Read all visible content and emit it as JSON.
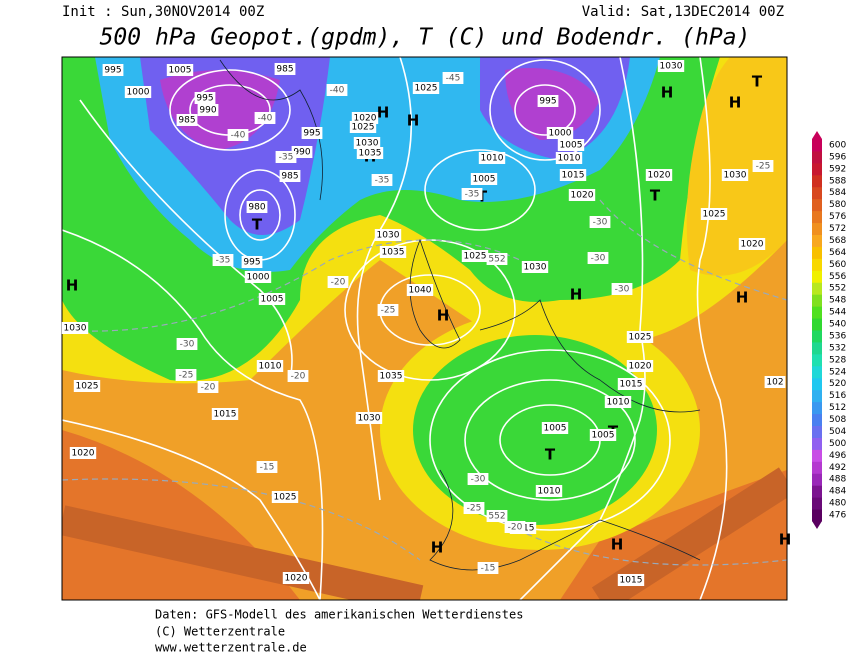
{
  "header": {
    "init": "Init : Sun,30NOV2014 00Z",
    "valid": "Valid: Sat,13DEC2014 00Z",
    "title": "500 hPa Geopot.(gpdm), T (C) und Bodendr. (hPa)"
  },
  "colorbar": {
    "ticks": [
      476,
      480,
      484,
      488,
      492,
      496,
      500,
      504,
      508,
      512,
      516,
      520,
      524,
      528,
      532,
      536,
      540,
      544,
      548,
      552,
      556,
      560,
      564,
      568,
      572,
      576,
      580,
      584,
      588,
      592,
      596,
      600
    ],
    "colors": [
      "#5a0060",
      "#6a0a78",
      "#7c1490",
      "#9a28b8",
      "#b43ad0",
      "#c84ee6",
      "#9060f0",
      "#6a70f0",
      "#4a80f0",
      "#3a98f0",
      "#30b0f0",
      "#20c8f0",
      "#20d8d8",
      "#20e0b0",
      "#20d890",
      "#20d860",
      "#30d830",
      "#50e020",
      "#80e020",
      "#b8e820",
      "#f0f000",
      "#f8d800",
      "#f8c000",
      "#f8a820",
      "#f09020",
      "#e87820",
      "#e06020",
      "#d84820",
      "#d03020",
      "#c81830",
      "#c01040",
      "#c8005a"
    ]
  },
  "map": {
    "highs_lows": [
      "H",
      "H",
      "H",
      "H",
      "H",
      "H",
      "H",
      "H",
      "H",
      "H",
      "H",
      "H",
      "T",
      "T",
      "T",
      "T",
      "T",
      "T",
      "T"
    ],
    "isobar_labels": [
      "995",
      "1005",
      "1000",
      "995",
      "990",
      "985",
      "985",
      "995",
      "990",
      "985",
      "980",
      "995",
      "1000",
      "1005",
      "1030",
      "1025",
      "1015",
      "1020",
      "1010",
      "1030",
      "1035",
      "1040",
      "1035",
      "1030",
      "1025",
      "1020",
      "1015",
      "1010",
      "1005",
      "1005",
      "1010",
      "1015",
      "1020",
      "1025",
      "1030",
      "1025",
      "1010",
      "1005",
      "1030",
      "1020",
      "1030",
      "1025",
      "1020",
      "1025",
      "1020",
      "1025",
      "1030",
      "1035",
      "1000",
      "1005",
      "1010",
      "1015",
      "1020",
      "995",
      "1015",
      "102"
    ],
    "temperature_labels": [
      "-45",
      "-40",
      "-40",
      "-40",
      "-35",
      "-35",
      "-35",
      "-35",
      "-30",
      "-30",
      "-30",
      "-25",
      "-25",
      "-25",
      "-30",
      "-25",
      "-20",
      "-20",
      "-20",
      "-15",
      "-15",
      "-20",
      "-30",
      "552",
      "552"
    ]
  },
  "footer": {
    "line1": "Daten: GFS-Modell des amerikanischen Wetterdienstes",
    "line2": "(C) Wetterzentrale",
    "line3": "www.wetterzentrale.de"
  }
}
